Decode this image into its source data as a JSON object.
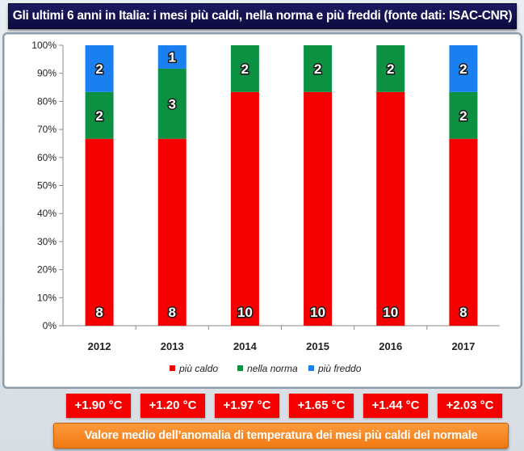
{
  "title": "Gli ultimi 6 anni in Italia: i mesi più caldi, nella norma e più freddi  (fonte dati: ISAC-CNR)",
  "chart_data": {
    "type": "bar",
    "stacked": "percent",
    "categories": [
      "2012",
      "2013",
      "2014",
      "2015",
      "2016",
      "2017"
    ],
    "series": [
      {
        "name": "più caldo",
        "color": "#f40000",
        "values": [
          8,
          8,
          10,
          10,
          10,
          8
        ]
      },
      {
        "name": "nella norma",
        "color": "#0b9141",
        "values": [
          2,
          3,
          2,
          2,
          2,
          2
        ]
      },
      {
        "name": "più freddo",
        "color": "#1a7ff0",
        "values": [
          2,
          1,
          0,
          0,
          0,
          2
        ]
      }
    ],
    "y_ticks": [
      "0%",
      "10%",
      "20%",
      "30%",
      "40%",
      "50%",
      "60%",
      "70%",
      "80%",
      "90%",
      "100%"
    ],
    "ylim": [
      0,
      100
    ],
    "grid": false,
    "legend_position": "bottom"
  },
  "anomalies": {
    "values": [
      "+1.90 °C",
      "+1.20 °C",
      "+1.97 °C",
      "+1.65 °C",
      "+1.44 °C",
      "+2.03 °C"
    ],
    "color": "#f40000"
  },
  "footer": "Valore medio dell’anomalia di temperatura dei mesi più caldi del normale"
}
